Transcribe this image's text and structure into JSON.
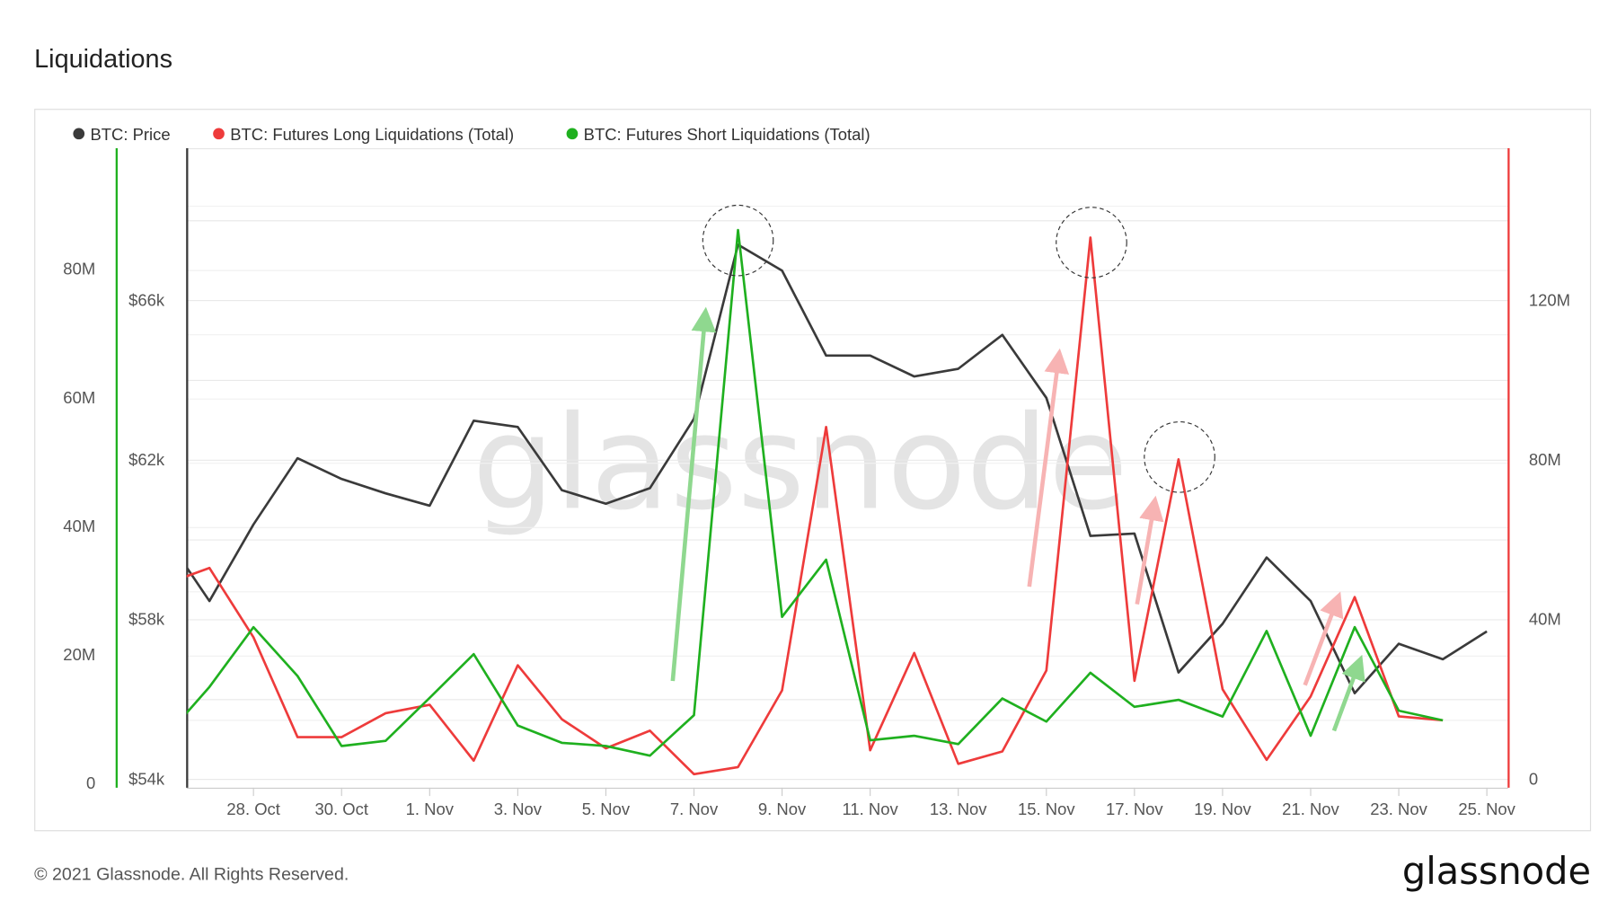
{
  "header": {
    "title": "Liquidations"
  },
  "footer": {
    "copyright": "© 2021 Glassnode. All Rights Reserved.",
    "logo": "glassnode"
  },
  "watermark": "glassnode",
  "colors": {
    "price": "#3a3a3a",
    "long": "#ee3b3b",
    "short": "#1fb01f",
    "grid": "#e6e6e6",
    "frame": "#dddddd"
  },
  "chart_data": {
    "type": "line",
    "title": "Liquidations",
    "legend_placement": "top-left",
    "grid": true,
    "x": [
      "2021-10-26",
      "2021-10-27",
      "2021-10-28",
      "2021-10-29",
      "2021-10-30",
      "2021-10-31",
      "2021-11-01",
      "2021-11-02",
      "2021-11-03",
      "2021-11-04",
      "2021-11-05",
      "2021-11-06",
      "2021-11-07",
      "2021-11-08",
      "2021-11-09",
      "2021-11-10",
      "2021-11-11",
      "2021-11-12",
      "2021-11-13",
      "2021-11-14",
      "2021-11-15",
      "2021-11-16",
      "2021-11-17",
      "2021-11-18",
      "2021-11-19",
      "2021-11-20",
      "2021-11-21",
      "2021-11-22",
      "2021-11-23",
      "2021-11-24",
      "2021-11-25"
    ],
    "x_tick_labels": [
      "28. Oct",
      "30. Oct",
      "1. Nov",
      "3. Nov",
      "5. Nov",
      "7. Nov",
      "9. Nov",
      "11. Nov",
      "13. Nov",
      "15. Nov",
      "17. Nov",
      "19. Nov",
      "21. Nov",
      "23. Nov",
      "25. Nov"
    ],
    "axes": {
      "short_axis": {
        "side": "left-outer",
        "ticks": [
          "0",
          "20M",
          "40M",
          "60M",
          "80M"
        ],
        "range": [
          0,
          97
        ]
      },
      "price_axis": {
        "side": "left-inner",
        "ticks": [
          "$54k",
          "$58k",
          "$62k",
          "$66k"
        ],
        "range": [
          54000,
          69800
        ]
      },
      "long_axis": {
        "side": "right",
        "ticks": [
          "0",
          "40M",
          "80M",
          "120M"
        ],
        "range": [
          0,
          158
        ]
      }
    },
    "series": [
      {
        "name": "BTC: Price",
        "axis": "price_axis",
        "color": "#3a3a3a",
        "values": [
          60100,
          58470,
          60390,
          62050,
          61530,
          61170,
          60860,
          62990,
          62830,
          61250,
          60910,
          61300,
          63040,
          67400,
          66750,
          64620,
          64620,
          64100,
          64290,
          65140,
          63560,
          60100,
          60160,
          56680,
          57900,
          59560,
          58470,
          56160,
          57400,
          57010,
          57710
        ]
      },
      {
        "name": "BTC: Futures Long Liquidations (Total)",
        "axis": "long_axis",
        "color": "#ee3b3b",
        "unit": "M",
        "values": [
          49,
          53,
          35.6,
          10.6,
          10.6,
          16.6,
          18.7,
          4.7,
          28.6,
          15.1,
          7.8,
          12.2,
          1.3,
          3.1,
          22.3,
          88.3,
          7.3,
          31.7,
          3.9,
          7.0,
          27.3,
          135.8,
          24.7,
          80.2,
          22.6,
          4.9,
          20.8,
          45.7,
          15.8,
          14.8,
          null
        ]
      },
      {
        "name": "BTC: Futures Short Liquidations (Total)",
        "axis": "short_axis",
        "color": "#1fb01f",
        "unit": "M",
        "values": [
          7.4,
          15.2,
          24.5,
          16.9,
          6.0,
          6.8,
          13.5,
          20.3,
          9.2,
          6.5,
          6.0,
          4.5,
          10.8,
          86.3,
          26.1,
          35.0,
          6.9,
          7.6,
          6.3,
          13.4,
          9.8,
          17.4,
          12.1,
          13.2,
          10.6,
          23.9,
          7.6,
          24.5,
          11.5,
          10.0,
          null
        ]
      }
    ]
  }
}
